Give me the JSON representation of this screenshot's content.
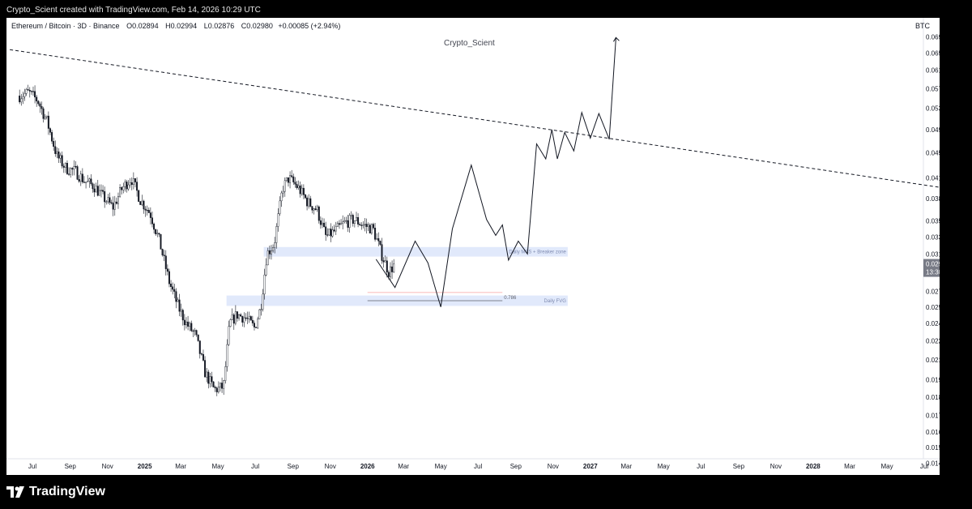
{
  "caption": "Crypto_Scient created with TradingView.com, Feb 14, 2026 10:29 UTC",
  "legend": {
    "symbol": "Ethereum / Bitcoin · 3D · Binance",
    "open_label": "O",
    "open": "0.02894",
    "high_label": "H",
    "high": "0.02994",
    "low_label": "L",
    "low": "0.02876",
    "close_label": "C",
    "close": "0.02980",
    "change": "+0.00085 (+2.94%)"
  },
  "currency": "BTC",
  "watermark": "Crypto_Scient",
  "brand": "TradingView",
  "chart_data": {
    "type": "candlestick",
    "title": "Ethereum / Bitcoin · 3D · Binance",
    "y_scale": "log",
    "ylim": [
      0.0139,
      0.0731
    ],
    "x_ticks": [
      "Jul",
      "Sep",
      "Nov",
      "2025",
      "Mar",
      "May",
      "Jul",
      "Sep",
      "Nov",
      "2026",
      "Mar",
      "May",
      "Jul",
      "Sep",
      "Nov",
      "2027",
      "Mar",
      "May",
      "Jul",
      "Sep",
      "Nov",
      "2028",
      "Mar",
      "May",
      "Jul"
    ],
    "x_ticks_bold": [
      "2025",
      "2026",
      "2027",
      "2028"
    ],
    "y_ticks": [
      "0.06900",
      "0.06500",
      "0.06100",
      "0.05700",
      "0.05300",
      "0.04900",
      "0.04500",
      "0.04100",
      "0.03800",
      "0.03500",
      "0.03300",
      "0.03100",
      "0.02700",
      "0.02550",
      "0.02400",
      "0.02250",
      "0.02100",
      "0.01950",
      "0.01830",
      "0.01710",
      "0.01610",
      "0.01520",
      "0.01435"
    ],
    "last_price": "0.02980",
    "countdown": "13:30:42",
    "price_path": [
      {
        "date": "2024-06-10",
        "close": 0.0555
      },
      {
        "date": "2024-06-25",
        "close": 0.0562
      },
      {
        "date": "2024-07-10",
        "close": 0.0545
      },
      {
        "date": "2024-07-25",
        "close": 0.0505
      },
      {
        "date": "2024-08-10",
        "close": 0.0445
      },
      {
        "date": "2024-08-25",
        "close": 0.0425
      },
      {
        "date": "2024-09-10",
        "close": 0.042
      },
      {
        "date": "2024-09-25",
        "close": 0.0405
      },
      {
        "date": "2024-10-10",
        "close": 0.0398
      },
      {
        "date": "2024-10-25",
        "close": 0.0382
      },
      {
        "date": "2024-11-10",
        "close": 0.0368
      },
      {
        "date": "2024-11-25",
        "close": 0.0395
      },
      {
        "date": "2024-12-10",
        "close": 0.041
      },
      {
        "date": "2024-12-25",
        "close": 0.0378
      },
      {
        "date": "2025-01-10",
        "close": 0.036
      },
      {
        "date": "2025-01-25",
        "close": 0.0325
      },
      {
        "date": "2025-02-10",
        "close": 0.028
      },
      {
        "date": "2025-02-25",
        "close": 0.0255
      },
      {
        "date": "2025-03-10",
        "close": 0.024
      },
      {
        "date": "2025-03-25",
        "close": 0.023
      },
      {
        "date": "2025-04-10",
        "close": 0.02
      },
      {
        "date": "2025-04-25",
        "close": 0.0188
      },
      {
        "date": "2025-05-10",
        "close": 0.019
      },
      {
        "date": "2025-05-20",
        "close": 0.024
      },
      {
        "date": "2025-06-01",
        "close": 0.0248
      },
      {
        "date": "2025-06-15",
        "close": 0.0245
      },
      {
        "date": "2025-06-30",
        "close": 0.0236
      },
      {
        "date": "2025-07-10",
        "close": 0.0255
      },
      {
        "date": "2025-07-20",
        "close": 0.031
      },
      {
        "date": "2025-08-01",
        "close": 0.0322
      },
      {
        "date": "2025-08-15",
        "close": 0.0395
      },
      {
        "date": "2025-08-25",
        "close": 0.041
      },
      {
        "date": "2025-09-10",
        "close": 0.0395
      },
      {
        "date": "2025-09-25",
        "close": 0.0375
      },
      {
        "date": "2025-10-10",
        "close": 0.0365
      },
      {
        "date": "2025-10-25",
        "close": 0.033
      },
      {
        "date": "2025-11-10",
        "close": 0.0338
      },
      {
        "date": "2025-11-25",
        "close": 0.0348
      },
      {
        "date": "2025-12-10",
        "close": 0.0352
      },
      {
        "date": "2025-12-25",
        "close": 0.0345
      },
      {
        "date": "2026-01-10",
        "close": 0.034
      },
      {
        "date": "2026-01-25",
        "close": 0.0308
      },
      {
        "date": "2026-02-05",
        "close": 0.029
      },
      {
        "date": "2026-02-14",
        "close": 0.0298
      }
    ],
    "projection": [
      {
        "date": "2026-01-15",
        "price": 0.0304
      },
      {
        "date": "2026-02-15",
        "price": 0.0274
      },
      {
        "date": "2026-03-20",
        "price": 0.0325
      },
      {
        "date": "2026-04-10",
        "price": 0.03
      },
      {
        "date": "2026-05-01",
        "price": 0.0255
      },
      {
        "date": "2026-05-20",
        "price": 0.034
      },
      {
        "date": "2026-06-20",
        "price": 0.043
      },
      {
        "date": "2026-07-15",
        "price": 0.0352
      },
      {
        "date": "2026-07-30",
        "price": 0.0332
      },
      {
        "date": "2026-08-10",
        "price": 0.0345
      },
      {
        "date": "2026-08-20",
        "price": 0.0303
      },
      {
        "date": "2026-09-05",
        "price": 0.0325
      },
      {
        "date": "2026-09-20",
        "price": 0.031
      },
      {
        "date": "2026-10-05",
        "price": 0.0465
      },
      {
        "date": "2026-10-20",
        "price": 0.044
      },
      {
        "date": "2026-10-30",
        "price": 0.049
      },
      {
        "date": "2026-11-08",
        "price": 0.044
      },
      {
        "date": "2026-11-20",
        "price": 0.0485
      },
      {
        "date": "2026-12-05",
        "price": 0.0453
      },
      {
        "date": "2026-12-18",
        "price": 0.0522
      },
      {
        "date": "2027-01-01",
        "price": 0.0475
      },
      {
        "date": "2027-01-15",
        "price": 0.052
      },
      {
        "date": "2027-02-01",
        "price": 0.0473
      },
      {
        "date": "2027-02-12",
        "price": 0.0688
      }
    ],
    "trendline": {
      "start": {
        "date": "2024-05-25",
        "price": 0.0658
      },
      "end": {
        "date": "2028-08-05",
        "price": 0.0395
      },
      "style": "dashed"
    },
    "zones": [
      {
        "label": "Daily MSS + Breaker zone",
        "from": "2025-07-15",
        "to": "2026-11-25",
        "low": 0.0307,
        "high": 0.0318
      },
      {
        "label": "Daily FVG",
        "from": "2025-05-15",
        "to": "2026-11-25",
        "low": 0.0256,
        "high": 0.0266
      }
    ],
    "fib": {
      "label": "0.786",
      "from": "2026-01-01",
      "to": "2026-08-10",
      "level": 0.0261,
      "upper": 0.0269
    },
    "colors": {
      "up": "#089981",
      "down": "#131722",
      "candle": "#131722",
      "zone": "#e1e9fb",
      "projection": "#131722",
      "last_tag": "#787b86"
    }
  }
}
